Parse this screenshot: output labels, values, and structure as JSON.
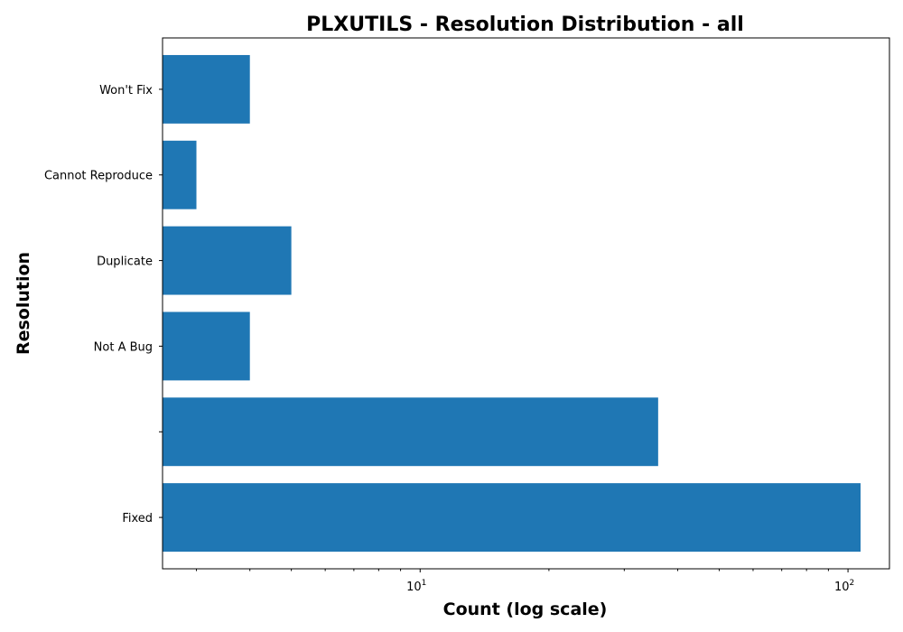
{
  "chart_data": {
    "type": "bar",
    "orientation": "horizontal",
    "title": "PLXUTILS - Resolution Distribution - all",
    "xlabel": "Count (log scale)",
    "ylabel": "Resolution",
    "x_scale": "log",
    "xlim": [
      2.5,
      125
    ],
    "grid": false,
    "categories": [
      "Fixed",
      "",
      "Not A Bug",
      "Duplicate",
      "Cannot Reproduce",
      "Won't Fix"
    ],
    "values": [
      107,
      36,
      4,
      5,
      3,
      4
    ],
    "bar_color": "#1f77b4",
    "x_ticks": [
      {
        "value": 10,
        "base": "10",
        "exponent": "1"
      },
      {
        "value": 100,
        "base": "10",
        "exponent": "2"
      }
    ]
  }
}
